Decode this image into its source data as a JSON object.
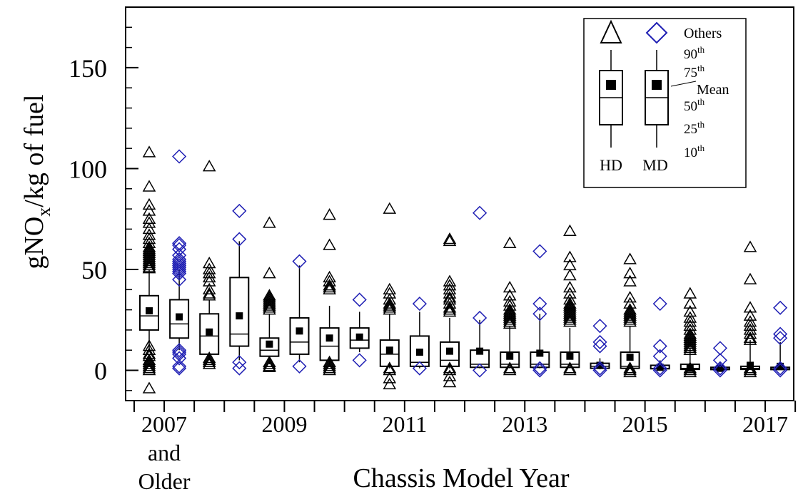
{
  "chart_data": {
    "type": "box",
    "xlabel": "Chassis Model Year",
    "ylabel": {
      "prefix": "gNO",
      "subscript": "x",
      "suffix": "/kg of fuel"
    },
    "ylim": [
      -15,
      180
    ],
    "yticks": [
      0,
      50,
      100,
      150
    ],
    "ytick_labels": [
      "0",
      "50",
      "100",
      "150"
    ],
    "xtick_labels": [
      {
        "pos": 1.5,
        "lines": [
          "2007",
          "and",
          "Older"
        ]
      },
      {
        "pos": 5.5,
        "lines": [
          "2009"
        ]
      },
      {
        "pos": 9.5,
        "lines": [
          "2011"
        ]
      },
      {
        "pos": 13.5,
        "lines": [
          "2013"
        ]
      },
      {
        "pos": 17.5,
        "lines": [
          "2015"
        ]
      },
      {
        "pos": 21.5,
        "lines": [
          "2017"
        ]
      }
    ],
    "n_positions": 22,
    "legend": {
      "placement": "top-right",
      "series_labels": [
        "HD",
        "MD"
      ],
      "labels": {
        "others": "Others",
        "p90": "90",
        "p75": "75",
        "mean": "Mean",
        "p50": "50",
        "p25": "25",
        "p10": "10",
        "ordinal_suffix": "th"
      }
    },
    "colors": {
      "HD": "#000000",
      "MD": "#1f1fb4",
      "mean": "#000000"
    },
    "series": [
      {
        "name": "HD",
        "marker": "triangle",
        "boxes": [
          {
            "pos": 1,
            "p10": 10,
            "p25": 20,
            "median": 27,
            "p75": 37,
            "p90": 50,
            "mean": 29.5,
            "others": [
              108,
              91,
              82,
              79,
              75,
              73,
              70,
              67,
              65,
              63,
              61,
              60,
              59,
              58,
              57,
              56,
              55,
              54,
              53,
              52,
              51,
              50.5,
              12,
              10,
              8,
              7,
              5,
              4,
              3,
              2,
              1,
              0,
              -9
            ]
          },
          {
            "pos": 3,
            "p10": 5,
            "p25": 8,
            "median": 17,
            "p75": 28,
            "p90": 35,
            "mean": 19,
            "others": [
              101,
              53,
              50,
              48,
              46,
              44,
              40,
              38,
              37,
              6,
              5,
              4,
              3
            ]
          },
          {
            "pos": 5,
            "p10": 3,
            "p25": 7,
            "median": 10,
            "p75": 16,
            "p90": 28,
            "mean": 13,
            "others": [
              73,
              48,
              37,
              36,
              35,
              34,
              33,
              32,
              31,
              30,
              4,
              3,
              2,
              1.5
            ]
          },
          {
            "pos": 7,
            "p10": 3,
            "p25": 5,
            "median": 12,
            "p75": 21,
            "p90": 32,
            "mean": 16,
            "others": [
              77,
              62,
              46,
              44,
              42,
              41,
              40,
              4,
              3,
              2,
              1,
              0
            ]
          },
          {
            "pos": 9,
            "p10": 1,
            "p25": 2,
            "median": 8,
            "p75": 15,
            "p90": 28,
            "mean": 10,
            "others": [
              80,
              40,
              38,
              35,
              33,
              32,
              31,
              30,
              1,
              0,
              -4,
              -7
            ]
          },
          {
            "pos": 11,
            "p10": 1,
            "p25": 2,
            "median": 5,
            "p75": 14,
            "p90": 26,
            "mean": 9.5,
            "others": [
              65,
              64,
              44,
              42,
              40,
              38,
              36,
              35,
              33,
              31,
              30,
              29,
              1,
              0,
              -3,
              -6
            ]
          },
          {
            "pos": 13,
            "p10": 1,
            "p25": 1.5,
            "median": 3,
            "p75": 9,
            "p90": 22,
            "mean": 7,
            "others": [
              63,
              41,
              37,
              34,
              32,
              30,
              29,
              28,
              27,
              26,
              25,
              24,
              23,
              1,
              0
            ]
          },
          {
            "pos": 15,
            "p10": 1,
            "p25": 1.5,
            "median": 3,
            "p75": 9,
            "p90": 21,
            "mean": 7,
            "others": [
              69,
              56,
              52,
              47,
              41,
              38,
              35,
              33,
              32,
              31,
              30,
              29,
              28,
              27,
              26,
              25,
              24,
              1,
              0
            ]
          },
          {
            "pos": 17,
            "p10": 0.5,
            "p25": 1,
            "median": 2,
            "p75": 9,
            "p90": 22,
            "mean": 6.5,
            "others": [
              55,
              48,
              44,
              36,
              33,
              30,
              29,
              28,
              27,
              26,
              25,
              24,
              1,
              0,
              -1
            ]
          },
          {
            "pos": 19,
            "p10": 0.3,
            "p25": 0.5,
            "median": 1,
            "p75": 3,
            "p90": 13,
            "mean": 1,
            "others": [
              38,
              33,
              29,
              26,
              24,
              22,
              20,
              18,
              17,
              16,
              15,
              14,
              13,
              12,
              11,
              10,
              1,
              0,
              -1
            ]
          },
          {
            "pos": 21,
            "p10": 0.2,
            "p25": 0.5,
            "median": 1,
            "p75": 2,
            "p90": 15,
            "mean": 2.5,
            "others": [
              61,
              45,
              31,
              27,
              24,
              22,
              20,
              18,
              16,
              15,
              1,
              0,
              -1
            ]
          }
        ]
      },
      {
        "name": "MD",
        "marker": "diamond",
        "boxes": [
          {
            "pos": 2,
            "p10": 10,
            "p25": 16,
            "median": 23,
            "p75": 35,
            "p90": 50,
            "mean": 26.5,
            "others": [
              106,
              63,
              62,
              60,
              57,
              55,
              54,
              53,
              52,
              51,
              50,
              49,
              48,
              45,
              10,
              9,
              8,
              6,
              2,
              1
            ]
          },
          {
            "pos": 4,
            "p10": 5,
            "p25": 12,
            "median": 18,
            "p75": 46,
            "p90": 64,
            "mean": 27,
            "others": [
              79,
              65,
              4,
              1
            ]
          },
          {
            "pos": 6,
            "p10": 4,
            "p25": 8,
            "median": 14,
            "p75": 26,
            "p90": 52,
            "mean": 19.5,
            "others": [
              54,
              2
            ]
          },
          {
            "pos": 8,
            "p10": 9,
            "p25": 11,
            "median": 15,
            "p75": 21,
            "p90": 29,
            "mean": 16.5,
            "others": [
              35,
              5
            ]
          },
          {
            "pos": 10,
            "p10": 1,
            "p25": 2,
            "median": 4,
            "p75": 17,
            "p90": 29,
            "mean": 9,
            "others": [
              33,
              1
            ]
          },
          {
            "pos": 12,
            "p10": 1,
            "p25": 1.5,
            "median": 3,
            "p75": 10,
            "p90": 25,
            "mean": 9.5,
            "others": [
              78,
              26,
              0
            ]
          },
          {
            "pos": 14,
            "p10": 1,
            "p25": 1.5,
            "median": 3,
            "p75": 9,
            "p90": 28,
            "mean": 8.5,
            "others": [
              59,
              33,
              28,
              1,
              0
            ]
          },
          {
            "pos": 16,
            "p10": 0.5,
            "p25": 1,
            "median": 2,
            "p75": 3.5,
            "p90": 6,
            "mean": 2.5,
            "others": [
              22,
              14,
              12,
              1,
              0
            ]
          },
          {
            "pos": 18,
            "p10": 0.5,
            "p25": 0.8,
            "median": 1,
            "p75": 2.5,
            "p90": 5,
            "mean": 1.5,
            "others": [
              33,
              12,
              7,
              1,
              0
            ]
          },
          {
            "pos": 20,
            "p10": 0.2,
            "p25": 0.4,
            "median": 0.7,
            "p75": 1.5,
            "p90": 4,
            "mean": 1,
            "others": [
              11,
              5,
              1,
              0
            ]
          },
          {
            "pos": 22,
            "p10": 0.2,
            "p25": 0.4,
            "median": 0.7,
            "p75": 1.5,
            "p90": 14,
            "mean": 2,
            "others": [
              31,
              18,
              16,
              1,
              0
            ]
          }
        ]
      }
    ]
  }
}
